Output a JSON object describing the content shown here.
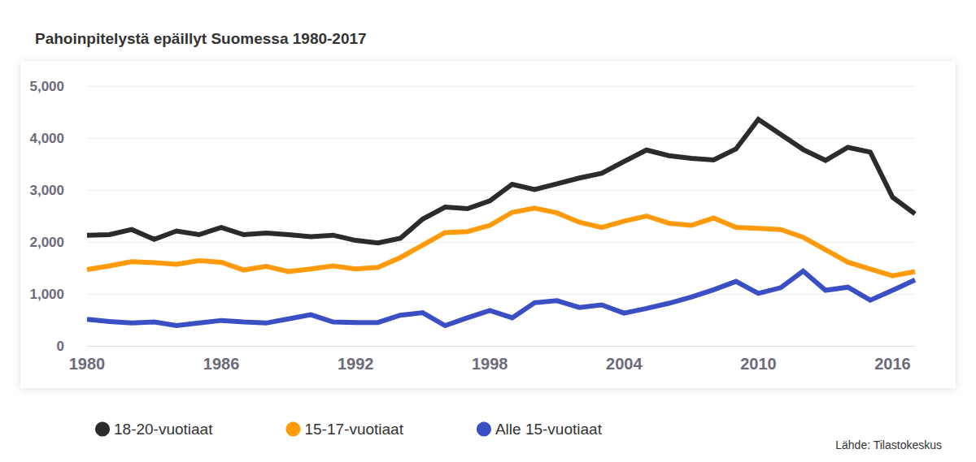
{
  "chart_data": {
    "type": "line",
    "title": "Pahoinpitelystä epäillyt Suomessa 1980-2017",
    "annotations": [
      "Lähde: Tilastokeskus"
    ],
    "x": [
      1980,
      1981,
      1982,
      1983,
      1984,
      1985,
      1986,
      1987,
      1988,
      1989,
      1990,
      1991,
      1992,
      1993,
      1994,
      1995,
      1996,
      1997,
      1998,
      1999,
      2000,
      2001,
      2002,
      2003,
      2004,
      2005,
      2006,
      2007,
      2008,
      2009,
      2010,
      2011,
      2012,
      2013,
      2014,
      2015,
      2016,
      2017
    ],
    "series": [
      {
        "name": "18-20-vuotiaat",
        "color": "#2b2b2b",
        "values": [
          2130,
          2140,
          2240,
          2050,
          2210,
          2140,
          2280,
          2140,
          2170,
          2140,
          2100,
          2130,
          2030,
          1980,
          2070,
          2440,
          2670,
          2640,
          2790,
          3110,
          3010,
          3120,
          3230,
          3320,
          3550,
          3770,
          3660,
          3610,
          3580,
          3790,
          4360,
          4070,
          3780,
          3570,
          3820,
          3730,
          2860,
          2540
        ]
      },
      {
        "name": "15-17-vuotiaat",
        "color": "#ff9a0a",
        "values": [
          1470,
          1540,
          1620,
          1600,
          1570,
          1640,
          1610,
          1460,
          1530,
          1430,
          1480,
          1540,
          1480,
          1510,
          1700,
          1940,
          2180,
          2200,
          2320,
          2570,
          2650,
          2560,
          2380,
          2280,
          2400,
          2500,
          2360,
          2320,
          2460,
          2280,
          2260,
          2240,
          2090,
          1850,
          1610,
          1480,
          1350,
          1430
        ]
      },
      {
        "name": "Alle 15-vuotiaat",
        "color": "#3a4fc4",
        "values": [
          510,
          470,
          440,
          460,
          390,
          440,
          490,
          460,
          440,
          520,
          600,
          460,
          450,
          450,
          590,
          640,
          390,
          540,
          680,
          540,
          830,
          870,
          740,
          790,
          630,
          720,
          820,
          940,
          1080,
          1240,
          1010,
          1120,
          1440,
          1070,
          1130,
          880,
          1070,
          1270
        ]
      }
    ],
    "xlim": [
      1980,
      2017
    ],
    "xticks": [
      1980,
      1986,
      1992,
      1998,
      2004,
      2010,
      2016
    ],
    "ylim": [
      0,
      5000
    ],
    "yticks": [
      0,
      1000,
      2000,
      3000,
      4000,
      5000
    ],
    "grid": true,
    "legend": "bottom",
    "marker": "none",
    "line_style": "solid"
  }
}
